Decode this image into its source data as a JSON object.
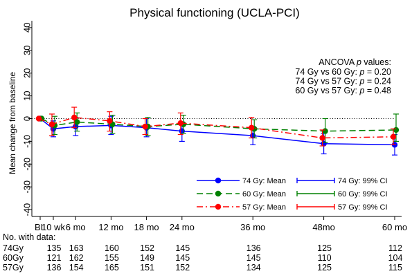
{
  "chart_data": {
    "type": "line",
    "title": "Physical functioning (UCLA-PCI)",
    "ylabel": "Mean change from baseline",
    "ylim": [
      -43,
      43
    ],
    "yticks": [
      40,
      30,
      20,
      10,
      0,
      -10,
      -20,
      -30,
      -40
    ],
    "x_months": [
      0,
      0.23,
      6,
      12,
      18,
      24,
      36,
      48,
      60
    ],
    "x_tick_labels": [
      "BL",
      "10 wk",
      "6 mo",
      "12 mo",
      "18 mo",
      "24 mo",
      "36 mo",
      "48mo",
      "60 mo"
    ],
    "reference_line": 0,
    "ancova": {
      "heading": "ANCOVA",
      "heading_italic": "p",
      "heading_tail": "values:",
      "rows": [
        {
          "label": "74 Gy vs 60 Gy:",
          "p": "p",
          "value": "= 0.20"
        },
        {
          "label": "74 Gy vs 57 Gy:",
          "p": "p",
          "value": "= 0.24"
        },
        {
          "label": "60 Gy vs 57 Gy:",
          "p": "p",
          "value": "= 0.48"
        }
      ]
    },
    "series": [
      {
        "name": "74 Gy: Mean",
        "ci_name": "74 Gy: 99% CI",
        "color": "#0000ff",
        "dash": "none",
        "means": [
          0,
          -4.5,
          -3.5,
          -3,
          -4,
          -5.5,
          -7.5,
          -11,
          -11.5
        ],
        "ci_low": [
          null,
          -8,
          -7.5,
          -7,
          -8,
          -10,
          -11.5,
          -15.5,
          -16
        ],
        "ci_high": [
          null,
          -1,
          0.5,
          1,
          0,
          -1.5,
          -3.5,
          -6.5,
          -7
        ]
      },
      {
        "name": "60 Gy: Mean",
        "ci_name": "60 Gy: 99% CI",
        "color": "#008000",
        "dash": "9,5",
        "means": [
          0,
          -3,
          -1.5,
          -2.5,
          -3.5,
          -2.5,
          -4.5,
          -5.5,
          -5
        ],
        "ci_low": [
          null,
          -7,
          -5.5,
          -6.5,
          -7.5,
          -6.5,
          -8.5,
          -10.5,
          -10
        ],
        "ci_high": [
          null,
          1,
          2.5,
          1.5,
          0.5,
          1.5,
          -0.5,
          0,
          2
        ]
      },
      {
        "name": "57 Gy: Mean",
        "ci_name": "57 Gy: 99% CI",
        "color": "#ff0000",
        "dash": "9,4,2,4",
        "means": [
          0,
          -2.5,
          0.5,
          -1,
          -3.5,
          -2,
          -4,
          -8.5,
          -8
        ],
        "ci_low": [
          null,
          -7.5,
          -4,
          -5.5,
          -7,
          -7,
          -8.5,
          -12,
          -11.5
        ],
        "ci_high": [
          null,
          2,
          5,
          3,
          0,
          2.5,
          0.5,
          -5,
          -4.5
        ]
      }
    ],
    "table": {
      "header": "No. with data:",
      "rows": [
        {
          "label": "74Gy",
          "values": [
            "135",
            "163",
            "160",
            "152",
            "145",
            "136",
            "125",
            "112"
          ]
        },
        {
          "label": "60Gy",
          "values": [
            "121",
            "162",
            "155",
            "149",
            "145",
            "145",
            "110",
            "104"
          ]
        },
        {
          "label": "57Gy",
          "values": [
            "136",
            "154",
            "165",
            "151",
            "152",
            "134",
            "125",
            "115"
          ]
        }
      ]
    }
  }
}
